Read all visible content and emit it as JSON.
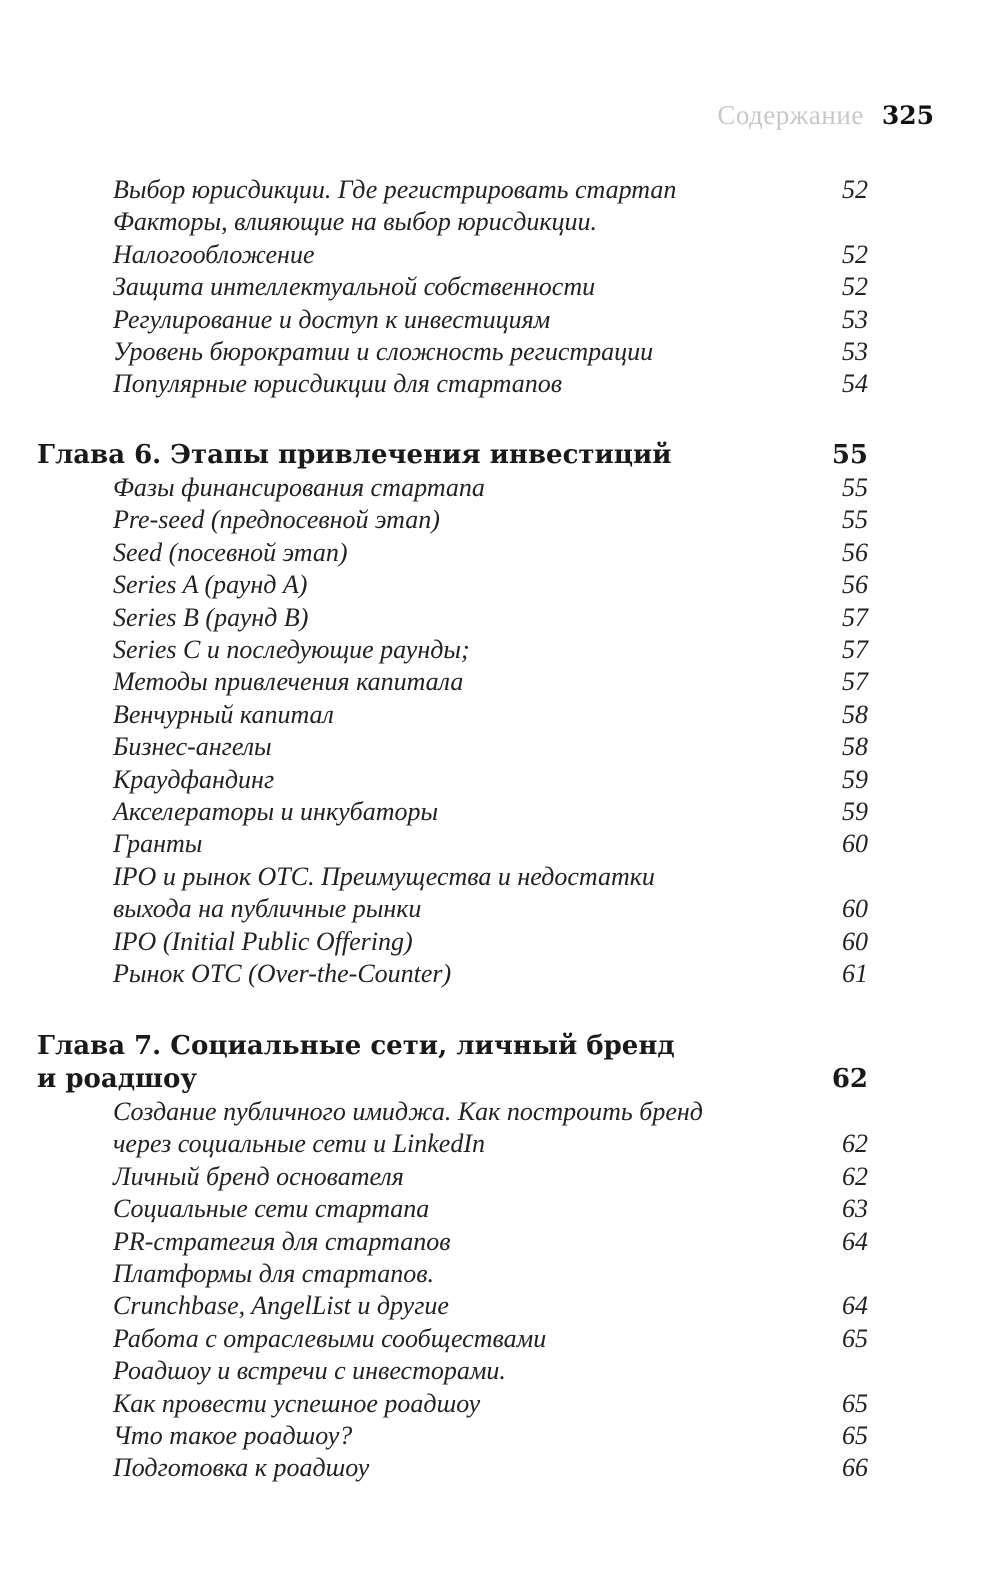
{
  "header": {
    "section_title": "Содержание",
    "page_number": "325"
  },
  "sections": [
    {
      "chapter": null,
      "items": [
        {
          "text": "Выбор юрисдикции. Где регистрировать стартап",
          "page": "52"
        },
        {
          "text": "Факторы, влияющие на выбор юрисдикции.\nНалогообложение",
          "page": "52"
        },
        {
          "text": "Защита интеллектуальной собственности",
          "page": "52"
        },
        {
          "text": "Регулирование и доступ к инвестициям",
          "page": "53"
        },
        {
          "text": "Уровень бюрократии и сложность регистрации",
          "page": "53"
        },
        {
          "text": "Популярные юрисдикции для стартапов",
          "page": "54"
        }
      ]
    },
    {
      "chapter": {
        "title": "Глава 6. Этапы привлечения инвестиций",
        "page": "55"
      },
      "items": [
        {
          "text": "Фазы финансирования стартапа",
          "page": "55"
        },
        {
          "text": "Pre-seed (предпосевной этап)",
          "page": "55"
        },
        {
          "text": "Seed (посевной этап)",
          "page": "56"
        },
        {
          "text": "Series A (раунд A)",
          "page": "56"
        },
        {
          "text": "Series B (раунд B)",
          "page": "57"
        },
        {
          "text": "Series C и последующие раунды;",
          "page": "57"
        },
        {
          "text": "Методы привлечения капитала",
          "page": "57"
        },
        {
          "text": "Венчурный капитал",
          "page": "58"
        },
        {
          "text": "Бизнес-ангелы",
          "page": "58"
        },
        {
          "text": "Краудфандинг",
          "page": "59"
        },
        {
          "text": "Акселераторы и инкубаторы",
          "page": "59"
        },
        {
          "text": "Гранты",
          "page": "60"
        },
        {
          "text": "IPO и рынок OTC. Преимущества и недостатки\nвыхода на публичные рынки",
          "page": "60"
        },
        {
          "text": "IPO (Initial Public Offering)",
          "page": "60"
        },
        {
          "text": "Рынок OTC (Over-the-Counter)",
          "page": "61"
        }
      ]
    },
    {
      "chapter": {
        "title": "Глава 7. Социальные сети, личный бренд\nи роадшоу",
        "page": "62"
      },
      "items": [
        {
          "text": "Создание публичного имиджа. Как построить бренд\nчерез социальные сети и LinkedIn",
          "page": "62"
        },
        {
          "text": "Личный бренд основателя",
          "page": "62"
        },
        {
          "text": "Социальные сети стартапа",
          "page": "63"
        },
        {
          "text": "PR-стратегия для стартапов",
          "page": "64"
        },
        {
          "text": "Платформы для стартапов.\nCrunchbase, AngelList и другие",
          "page": "64"
        },
        {
          "text": "Работа с отраслевыми сообществами",
          "page": "65"
        },
        {
          "text": "Роадшоу и встречи с инвесторами.\nКак провести успешное роадшоу",
          "page": "65"
        },
        {
          "text": "Что такое роадшоу?",
          "page": "65"
        },
        {
          "text": "Подготовка к роадшоу",
          "page": "66"
        }
      ]
    }
  ]
}
